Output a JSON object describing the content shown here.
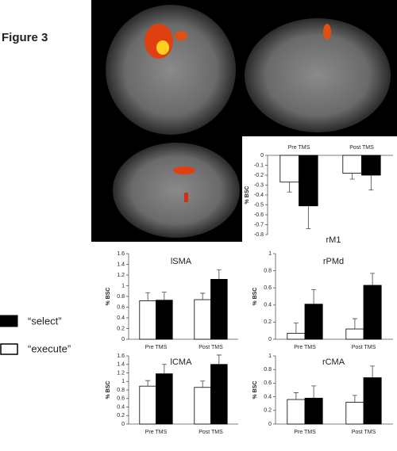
{
  "figure_label": "Figure 3",
  "chart_data": [
    {
      "type": "bar",
      "title": "rM1",
      "ylabel": "% BSC",
      "categories": [
        "Pre TMS",
        "Post TMS"
      ],
      "xaxis_position": "top",
      "ylim": [
        -0.8,
        0
      ],
      "yticks": [
        0,
        -0.1,
        -0.2,
        -0.3,
        -0.4,
        -0.5,
        -0.6,
        -0.7,
        -0.8
      ],
      "series": [
        {
          "name": "“execute”",
          "color": "#ffffff",
          "values": [
            -0.27,
            -0.18
          ],
          "errors": [
            0.1,
            0.06
          ]
        },
        {
          "name": "“select”",
          "color": "#000000",
          "values": [
            -0.51,
            -0.2
          ],
          "errors": [
            0.23,
            0.15
          ]
        }
      ]
    },
    {
      "type": "bar",
      "title": "lSMA",
      "ylabel": "% BSC",
      "categories": [
        "Pre TMS",
        "Post TMS"
      ],
      "xaxis_position": "bottom",
      "ylim": [
        0,
        1.6
      ],
      "yticks": [
        0,
        0.2,
        0.4,
        0.6,
        0.8,
        1,
        1.2,
        1.4,
        1.6
      ],
      "series": [
        {
          "color": "#ffffff",
          "values": [
            0.72,
            0.74
          ],
          "errors": [
            0.15,
            0.12
          ]
        },
        {
          "color": "#000000",
          "values": [
            0.73,
            1.12
          ],
          "errors": [
            0.15,
            0.18
          ]
        }
      ]
    },
    {
      "type": "bar",
      "title": "rPMd",
      "ylabel": "% BSC",
      "categories": [
        "Pre TMS",
        "Post TMS"
      ],
      "xaxis_position": "bottom",
      "ylim": [
        0,
        1
      ],
      "yticks": [
        0,
        0.2,
        0.4,
        0.6,
        0.8,
        1
      ],
      "series": [
        {
          "color": "#ffffff",
          "values": [
            0.07,
            0.12
          ],
          "errors": [
            0.12,
            0.12
          ]
        },
        {
          "color": "#000000",
          "values": [
            0.41,
            0.63
          ],
          "errors": [
            0.17,
            0.14
          ]
        }
      ]
    },
    {
      "type": "bar",
      "title": "lCMA",
      "ylabel": "% BSC",
      "categories": [
        "Pre TMS",
        "Post TMS"
      ],
      "xaxis_position": "bottom",
      "ylim": [
        0,
        1.6
      ],
      "yticks": [
        0,
        0.2,
        0.4,
        0.6,
        0.8,
        1,
        1.2,
        1.4,
        1.6
      ],
      "series": [
        {
          "color": "#ffffff",
          "values": [
            0.89,
            0.86
          ],
          "errors": [
            0.13,
            0.15
          ]
        },
        {
          "color": "#000000",
          "values": [
            1.18,
            1.4
          ],
          "errors": [
            0.22,
            0.22
          ]
        }
      ]
    },
    {
      "type": "bar",
      "title": "rCMA",
      "ylabel": "% BSC",
      "categories": [
        "Pre TMS",
        "Post TMS"
      ],
      "xaxis_position": "bottom",
      "ylim": [
        0,
        1
      ],
      "yticks": [
        0,
        0.2,
        0.4,
        0.6,
        0.8,
        1
      ],
      "series": [
        {
          "color": "#ffffff",
          "values": [
            0.36,
            0.32
          ],
          "errors": [
            0.1,
            0.1
          ]
        },
        {
          "color": "#000000",
          "values": [
            0.38,
            0.68
          ],
          "errors": [
            0.18,
            0.17
          ]
        }
      ]
    }
  ]
}
